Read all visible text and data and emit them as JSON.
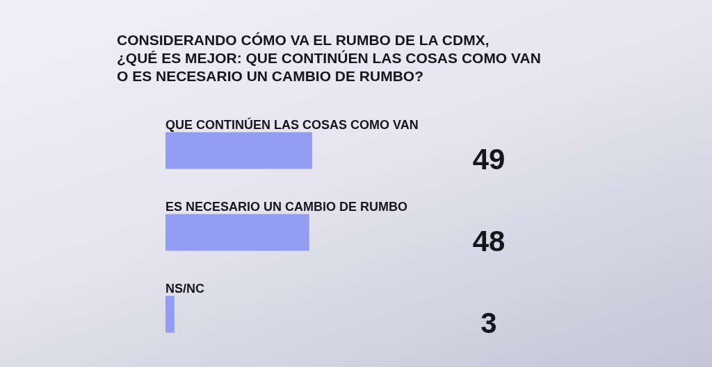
{
  "chart_data": {
    "type": "bar",
    "orientation": "horizontal",
    "title": "CONSIDERANDO CÓMO VA EL RUMBO DE LA CDMX,\n¿QUÉ ES MEJOR: QUE CONTINÚEN LAS COSAS COMO VAN\nO ES NECESARIO UN CAMBIO DE RUMBO?",
    "categories": [
      "QUE CONTINÚEN LAS COSAS COMO VAN",
      "ES NECESARIO UN CAMBIO DE RUMBO",
      "NS/NC"
    ],
    "values": [
      49,
      48,
      3
    ],
    "color": "#929ef0",
    "data_labels": true
  }
}
